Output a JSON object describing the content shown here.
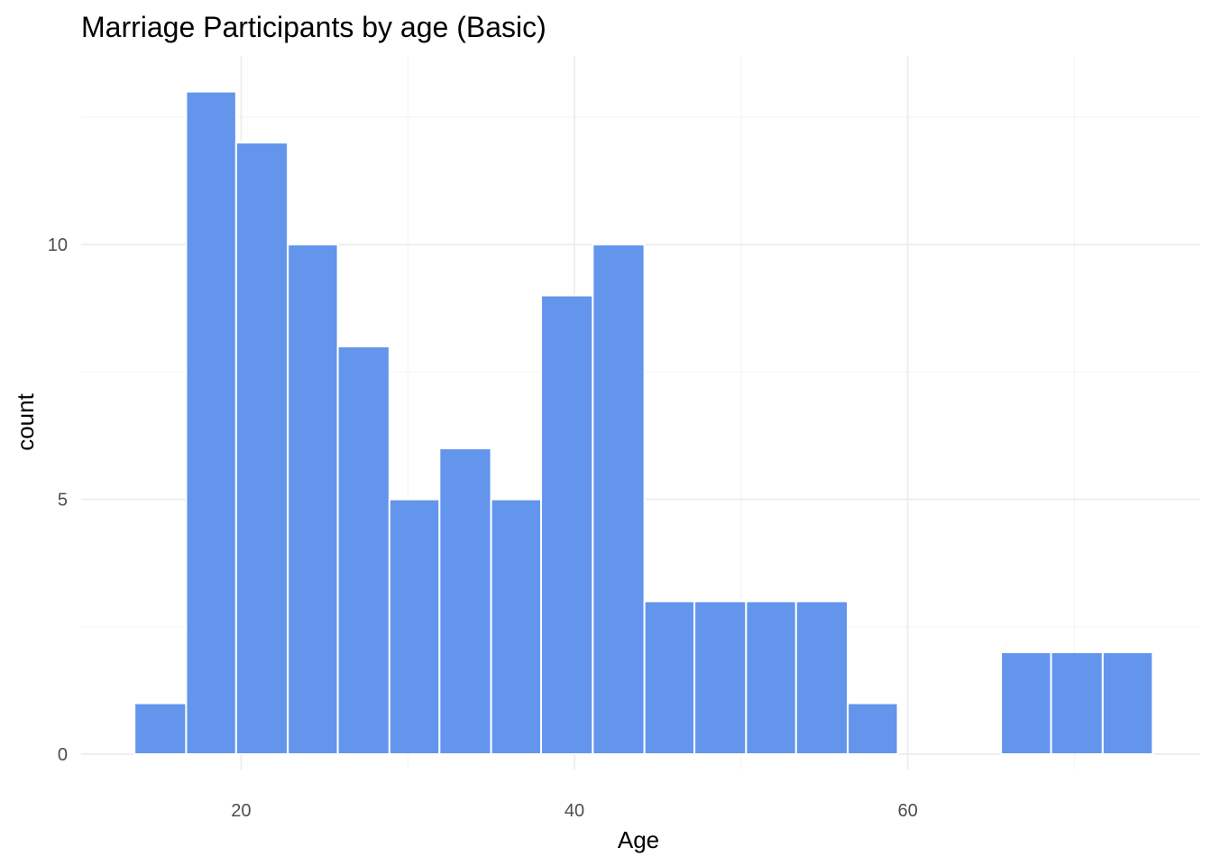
{
  "chart_data": {
    "type": "bar",
    "title": "Marriage Participants by age (Basic)",
    "xlabel": "Age",
    "ylabel": "count",
    "bar_color": "#6495ED",
    "bar_outline": "#FFFFFF",
    "background": "#FFFFFF",
    "grid": true,
    "legend": "none",
    "xlim": [
      10.4,
      77.5
    ],
    "ylim": [
      -0.3,
      13.7
    ],
    "x_major_ticks": [
      20,
      40,
      60
    ],
    "x_minor_ticks": [
      30,
      50,
      70
    ],
    "y_major_ticks": [
      0,
      5,
      10
    ],
    "y_minor_ticks": [
      2.5,
      7.5,
      12.5
    ],
    "x_tick_labels": [
      "20",
      "40",
      "60"
    ],
    "y_tick_labels": [
      "0",
      "5",
      "10"
    ],
    "bins": [
      {
        "x0": 13.6,
        "x1": 16.7,
        "count": 1
      },
      {
        "x0": 16.7,
        "x1": 19.7,
        "count": 13
      },
      {
        "x0": 19.7,
        "x1": 22.8,
        "count": 12
      },
      {
        "x0": 22.8,
        "x1": 25.8,
        "count": 10
      },
      {
        "x0": 25.8,
        "x1": 28.9,
        "count": 8
      },
      {
        "x0": 28.9,
        "x1": 31.9,
        "count": 5
      },
      {
        "x0": 31.9,
        "x1": 35.0,
        "count": 6
      },
      {
        "x0": 35.0,
        "x1": 38.0,
        "count": 5
      },
      {
        "x0": 38.0,
        "x1": 41.1,
        "count": 9
      },
      {
        "x0": 41.1,
        "x1": 44.2,
        "count": 10
      },
      {
        "x0": 44.2,
        "x1": 47.2,
        "count": 3
      },
      {
        "x0": 47.2,
        "x1": 50.3,
        "count": 3
      },
      {
        "x0": 50.3,
        "x1": 53.3,
        "count": 3
      },
      {
        "x0": 53.3,
        "x1": 56.4,
        "count": 3
      },
      {
        "x0": 56.4,
        "x1": 59.4,
        "count": 1
      },
      {
        "x0": 59.4,
        "x1": 62.5,
        "count": 0
      },
      {
        "x0": 62.5,
        "x1": 65.6,
        "count": 0
      },
      {
        "x0": 65.6,
        "x1": 68.6,
        "count": 2
      },
      {
        "x0": 68.6,
        "x1": 71.7,
        "count": 2
      },
      {
        "x0": 71.7,
        "x1": 74.7,
        "count": 2
      }
    ]
  }
}
